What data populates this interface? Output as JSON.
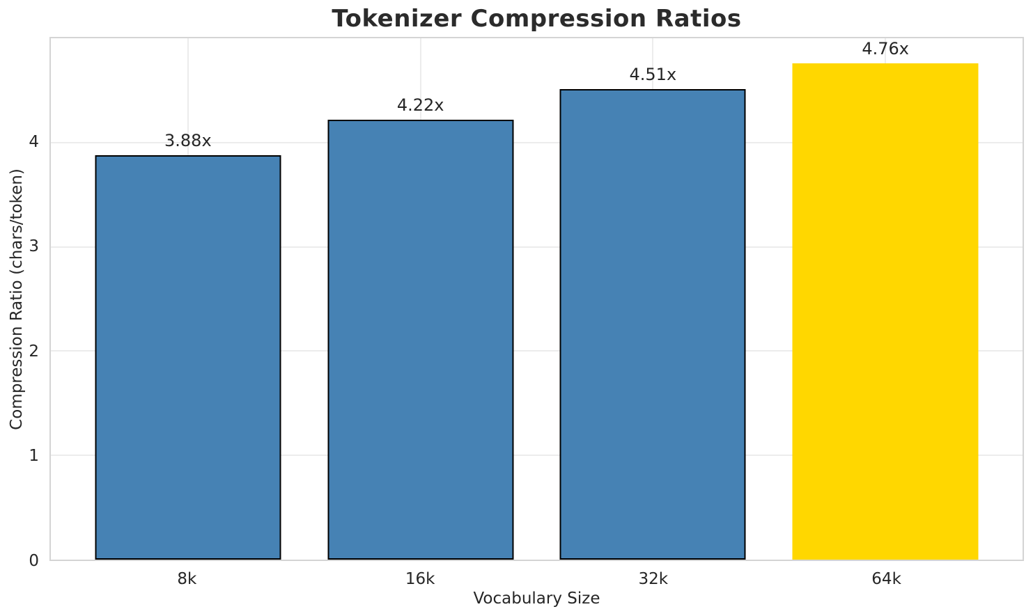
{
  "chart_data": {
    "type": "bar",
    "title": "Tokenizer Compression Ratios",
    "xlabel": "Vocabulary Size",
    "ylabel": "Compression Ratio (chars/token)",
    "categories": [
      "8k",
      "16k",
      "32k",
      "64k"
    ],
    "values": [
      3.88,
      4.22,
      4.51,
      4.76
    ],
    "value_labels": [
      "3.88x",
      "4.22x",
      "4.51x",
      "4.76x"
    ],
    "ylim": [
      0,
      5.0
    ],
    "yticks": [
      0,
      1,
      2,
      3,
      4
    ],
    "grid": true,
    "legend": "none",
    "bar_colors": [
      "#4682B4",
      "#4682B4",
      "#4682B4",
      "#FFD700"
    ],
    "bar_edge_colors": [
      "#000000",
      "#000000",
      "#000000",
      "none"
    ],
    "highlight_index": 3
  },
  "colors": {
    "bar_default": "#4682B4",
    "bar_highlight": "#FFD700",
    "bar_edge": "#000000",
    "grid": "#ececec",
    "spine": "#d4d4d4",
    "text": "#262626",
    "title_text": "#2b2b2b",
    "background": "#ffffff"
  }
}
